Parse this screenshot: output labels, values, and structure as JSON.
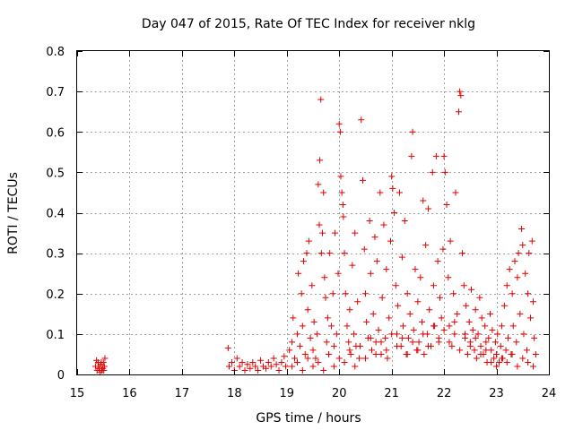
{
  "chart_data": {
    "type": "scatter",
    "title": "Day 047 of 2015, Rate Of TEC Index for receiver nklg",
    "xlabel": "GPS time / hours",
    "ylabel": "ROTI / TECUs",
    "xlim": [
      15,
      24
    ],
    "ylim": [
      0,
      0.8
    ],
    "xticks": [
      15,
      16,
      17,
      18,
      19,
      20,
      21,
      22,
      23,
      24
    ],
    "yticks": [
      0,
      0.1,
      0.2,
      0.3,
      0.4,
      0.5,
      0.6,
      0.7,
      0.8
    ],
    "ytick_labels": [
      "0",
      "0.1",
      "0.2",
      "0.3",
      "0.4",
      "0.5",
      "0.6",
      "0.7",
      "0.8"
    ],
    "grid": true,
    "marker": "+",
    "color": "#e00000",
    "series": [
      {
        "name": "ROTI",
        "points": [
          [
            15.35,
            0.02
          ],
          [
            15.38,
            0.01
          ],
          [
            15.4,
            0.03
          ],
          [
            15.42,
            0.015
          ],
          [
            15.45,
            0.025
          ],
          [
            15.47,
            0.01
          ],
          [
            15.5,
            0.03
          ],
          [
            15.52,
            0.02
          ],
          [
            15.37,
            0.035
          ],
          [
            15.44,
            0.005
          ],
          [
            15.49,
            0.015
          ],
          [
            15.53,
            0.04
          ],
          [
            15.41,
            0.02
          ],
          [
            15.46,
            0.03
          ],
          [
            15.51,
            0.01
          ],
          [
            17.88,
            0.065
          ],
          [
            17.9,
            0.02
          ],
          [
            17.95,
            0.03
          ],
          [
            18.0,
            0.01
          ],
          [
            18.05,
            0.04
          ],
          [
            18.1,
            0.02
          ],
          [
            18.15,
            0.03
          ],
          [
            18.2,
            0.01
          ],
          [
            18.25,
            0.025
          ],
          [
            18.3,
            0.015
          ],
          [
            18.35,
            0.03
          ],
          [
            18.4,
            0.02
          ],
          [
            18.45,
            0.01
          ],
          [
            18.5,
            0.035
          ],
          [
            18.55,
            0.02
          ],
          [
            18.6,
            0.015
          ],
          [
            18.65,
            0.03
          ],
          [
            18.7,
            0.02
          ],
          [
            18.75,
            0.04
          ],
          [
            18.8,
            0.025
          ],
          [
            18.85,
            0.01
          ],
          [
            18.9,
            0.03
          ],
          [
            18.95,
            0.045
          ],
          [
            18.98,
            0.02
          ],
          [
            19.05,
            0.06
          ],
          [
            19.1,
            0.08
          ],
          [
            19.12,
            0.14
          ],
          [
            19.15,
            0.04
          ],
          [
            19.2,
            0.1
          ],
          [
            19.22,
            0.25
          ],
          [
            19.25,
            0.07
          ],
          [
            19.28,
            0.2
          ],
          [
            19.3,
            0.12
          ],
          [
            19.32,
            0.28
          ],
          [
            19.35,
            0.05
          ],
          [
            19.38,
            0.3
          ],
          [
            19.4,
            0.16
          ],
          [
            19.42,
            0.33
          ],
          [
            19.45,
            0.09
          ],
          [
            19.48,
            0.22
          ],
          [
            19.5,
            0.06
          ],
          [
            19.52,
            0.13
          ],
          [
            19.55,
            0.04
          ],
          [
            19.58,
            0.1
          ],
          [
            19.6,
            0.47
          ],
          [
            19.62,
            0.37
          ],
          [
            19.63,
            0.53
          ],
          [
            19.65,
            0.68
          ],
          [
            19.66,
            0.3
          ],
          [
            19.68,
            0.35
          ],
          [
            19.7,
            0.45
          ],
          [
            19.72,
            0.24
          ],
          [
            19.74,
            0.19
          ],
          [
            19.76,
            0.08
          ],
          [
            19.78,
            0.14
          ],
          [
            19.8,
            0.05
          ],
          [
            19.82,
            0.3
          ],
          [
            19.85,
            0.12
          ],
          [
            19.88,
            0.2
          ],
          [
            19.9,
            0.07
          ],
          [
            19.92,
            0.35
          ],
          [
            19.95,
            0.1
          ],
          [
            19.98,
            0.25
          ],
          [
            20.0,
            0.62
          ],
          [
            20.02,
            0.6
          ],
          [
            20.03,
            0.49
          ],
          [
            20.05,
            0.45
          ],
          [
            20.07,
            0.42
          ],
          [
            20.08,
            0.39
          ],
          [
            20.1,
            0.3
          ],
          [
            20.12,
            0.2
          ],
          [
            20.15,
            0.12
          ],
          [
            20.18,
            0.08
          ],
          [
            20.2,
            0.16
          ],
          [
            20.22,
            0.05
          ],
          [
            20.25,
            0.27
          ],
          [
            20.28,
            0.1
          ],
          [
            20.3,
            0.35
          ],
          [
            20.32,
            0.07
          ],
          [
            20.35,
            0.18
          ],
          [
            20.38,
            0.04
          ],
          [
            20.42,
            0.63
          ],
          [
            20.45,
            0.48
          ],
          [
            20.48,
            0.31
          ],
          [
            20.5,
            0.2
          ],
          [
            20.52,
            0.13
          ],
          [
            20.55,
            0.09
          ],
          [
            20.58,
            0.38
          ],
          [
            20.6,
            0.25
          ],
          [
            20.62,
            0.06
          ],
          [
            20.65,
            0.15
          ],
          [
            20.68,
            0.34
          ],
          [
            20.7,
            0.08
          ],
          [
            20.72,
            0.28
          ],
          [
            20.75,
            0.11
          ],
          [
            20.78,
            0.45
          ],
          [
            20.8,
            0.05
          ],
          [
            20.82,
            0.19
          ],
          [
            20.85,
            0.37
          ],
          [
            20.88,
            0.09
          ],
          [
            20.9,
            0.26
          ],
          [
            20.92,
            0.04
          ],
          [
            20.95,
            0.14
          ],
          [
            20.98,
            0.33
          ],
          [
            21.0,
            0.49
          ],
          [
            21.02,
            0.46
          ],
          [
            21.05,
            0.4
          ],
          [
            21.08,
            0.22
          ],
          [
            21.1,
            0.1
          ],
          [
            21.12,
            0.17
          ],
          [
            21.15,
            0.45
          ],
          [
            21.18,
            0.07
          ],
          [
            21.2,
            0.29
          ],
          [
            21.22,
            0.12
          ],
          [
            21.25,
            0.38
          ],
          [
            21.28,
            0.05
          ],
          [
            21.3,
            0.2
          ],
          [
            21.32,
            0.09
          ],
          [
            21.35,
            0.15
          ],
          [
            21.38,
            0.54
          ],
          [
            21.4,
            0.6
          ],
          [
            21.42,
            0.11
          ],
          [
            21.45,
            0.26
          ],
          [
            21.48,
            0.06
          ],
          [
            21.5,
            0.18
          ],
          [
            21.52,
            0.08
          ],
          [
            21.55,
            0.24
          ],
          [
            21.58,
            0.13
          ],
          [
            21.6,
            0.43
          ],
          [
            21.62,
            0.05
          ],
          [
            21.65,
            0.32
          ],
          [
            21.68,
            0.1
          ],
          [
            21.7,
            0.41
          ],
          [
            21.72,
            0.16
          ],
          [
            21.75,
            0.07
          ],
          [
            21.78,
            0.5
          ],
          [
            21.8,
            0.22
          ],
          [
            21.82,
            0.12
          ],
          [
            21.85,
            0.54
          ],
          [
            21.88,
            0.28
          ],
          [
            21.9,
            0.08
          ],
          [
            21.92,
            0.19
          ],
          [
            21.95,
            0.14
          ],
          [
            21.98,
            0.31
          ],
          [
            22.0,
            0.54
          ],
          [
            22.02,
            0.5
          ],
          [
            22.05,
            0.42
          ],
          [
            22.08,
            0.24
          ],
          [
            22.1,
            0.12
          ],
          [
            22.12,
            0.33
          ],
          [
            22.15,
            0.07
          ],
          [
            22.18,
            0.2
          ],
          [
            22.2,
            0.1
          ],
          [
            22.22,
            0.45
          ],
          [
            22.25,
            0.15
          ],
          [
            22.28,
            0.65
          ],
          [
            22.3,
            0.7
          ],
          [
            22.32,
            0.69
          ],
          [
            22.35,
            0.3
          ],
          [
            22.38,
            0.22
          ],
          [
            22.4,
            0.09
          ],
          [
            22.42,
            0.17
          ],
          [
            22.45,
            0.05
          ],
          [
            22.48,
            0.13
          ],
          [
            22.5,
            0.08
          ],
          [
            22.52,
            0.21
          ],
          [
            22.55,
            0.11
          ],
          [
            22.58,
            0.06
          ],
          [
            22.6,
            0.16
          ],
          [
            22.62,
            0.04
          ],
          [
            22.65,
            0.1
          ],
          [
            22.68,
            0.19
          ],
          [
            22.7,
            0.07
          ],
          [
            22.72,
            0.14
          ],
          [
            22.75,
            0.05
          ],
          [
            22.78,
            0.12
          ],
          [
            22.8,
            0.08
          ],
          [
            22.82,
            0.03
          ],
          [
            22.85,
            0.09
          ],
          [
            22.88,
            0.15
          ],
          [
            22.9,
            0.06
          ],
          [
            22.92,
            0.11
          ],
          [
            22.95,
            0.04
          ],
          [
            22.98,
            0.08
          ],
          [
            23.0,
            0.05
          ],
          [
            23.02,
            0.1
          ],
          [
            23.05,
            0.03
          ],
          [
            23.08,
            0.07
          ],
          [
            23.1,
            0.12
          ],
          [
            23.12,
            0.04
          ],
          [
            23.15,
            0.17
          ],
          [
            23.18,
            0.06
          ],
          [
            23.2,
            0.22
          ],
          [
            23.22,
            0.09
          ],
          [
            23.25,
            0.26
          ],
          [
            23.28,
            0.05
          ],
          [
            23.3,
            0.2
          ],
          [
            23.32,
            0.12
          ],
          [
            23.35,
            0.28
          ],
          [
            23.38,
            0.08
          ],
          [
            23.4,
            0.24
          ],
          [
            23.42,
            0.3
          ],
          [
            23.45,
            0.15
          ],
          [
            23.48,
            0.36
          ],
          [
            23.5,
            0.32
          ],
          [
            23.52,
            0.1
          ],
          [
            23.55,
            0.25
          ],
          [
            23.58,
            0.06
          ],
          [
            23.6,
            0.2
          ],
          [
            23.62,
            0.3
          ],
          [
            23.65,
            0.14
          ],
          [
            23.68,
            0.33
          ],
          [
            23.7,
            0.18
          ],
          [
            23.72,
            0.09
          ],
          [
            23.75,
            0.05
          ],
          [
            19.1,
            0.02
          ],
          [
            19.2,
            0.03
          ],
          [
            19.3,
            0.01
          ],
          [
            19.4,
            0.04
          ],
          [
            19.5,
            0.02
          ],
          [
            19.6,
            0.03
          ],
          [
            19.7,
            0.01
          ],
          [
            19.8,
            0.05
          ],
          [
            19.9,
            0.02
          ],
          [
            20.0,
            0.04
          ],
          [
            20.1,
            0.03
          ],
          [
            20.2,
            0.06
          ],
          [
            20.3,
            0.02
          ],
          [
            20.4,
            0.07
          ],
          [
            20.5,
            0.04
          ],
          [
            20.6,
            0.09
          ],
          [
            20.7,
            0.05
          ],
          [
            20.8,
            0.08
          ],
          [
            20.9,
            0.06
          ],
          [
            21.0,
            0.1
          ],
          [
            21.1,
            0.07
          ],
          [
            21.2,
            0.09
          ],
          [
            21.3,
            0.05
          ],
          [
            21.4,
            0.08
          ],
          [
            21.5,
            0.06
          ],
          [
            21.6,
            0.1
          ],
          [
            21.7,
            0.07
          ],
          [
            21.8,
            0.12
          ],
          [
            21.9,
            0.09
          ],
          [
            22.0,
            0.11
          ],
          [
            22.1,
            0.08
          ],
          [
            22.2,
            0.13
          ],
          [
            22.3,
            0.06
          ],
          [
            22.4,
            0.1
          ],
          [
            22.5,
            0.07
          ],
          [
            22.6,
            0.09
          ],
          [
            22.7,
            0.05
          ],
          [
            22.8,
            0.06
          ],
          [
            22.9,
            0.03
          ],
          [
            23.0,
            0.02
          ],
          [
            23.1,
            0.04
          ],
          [
            23.2,
            0.03
          ],
          [
            23.3,
            0.05
          ],
          [
            23.4,
            0.02
          ],
          [
            23.5,
            0.04
          ],
          [
            23.6,
            0.03
          ],
          [
            23.7,
            0.02
          ]
        ]
      }
    ]
  }
}
